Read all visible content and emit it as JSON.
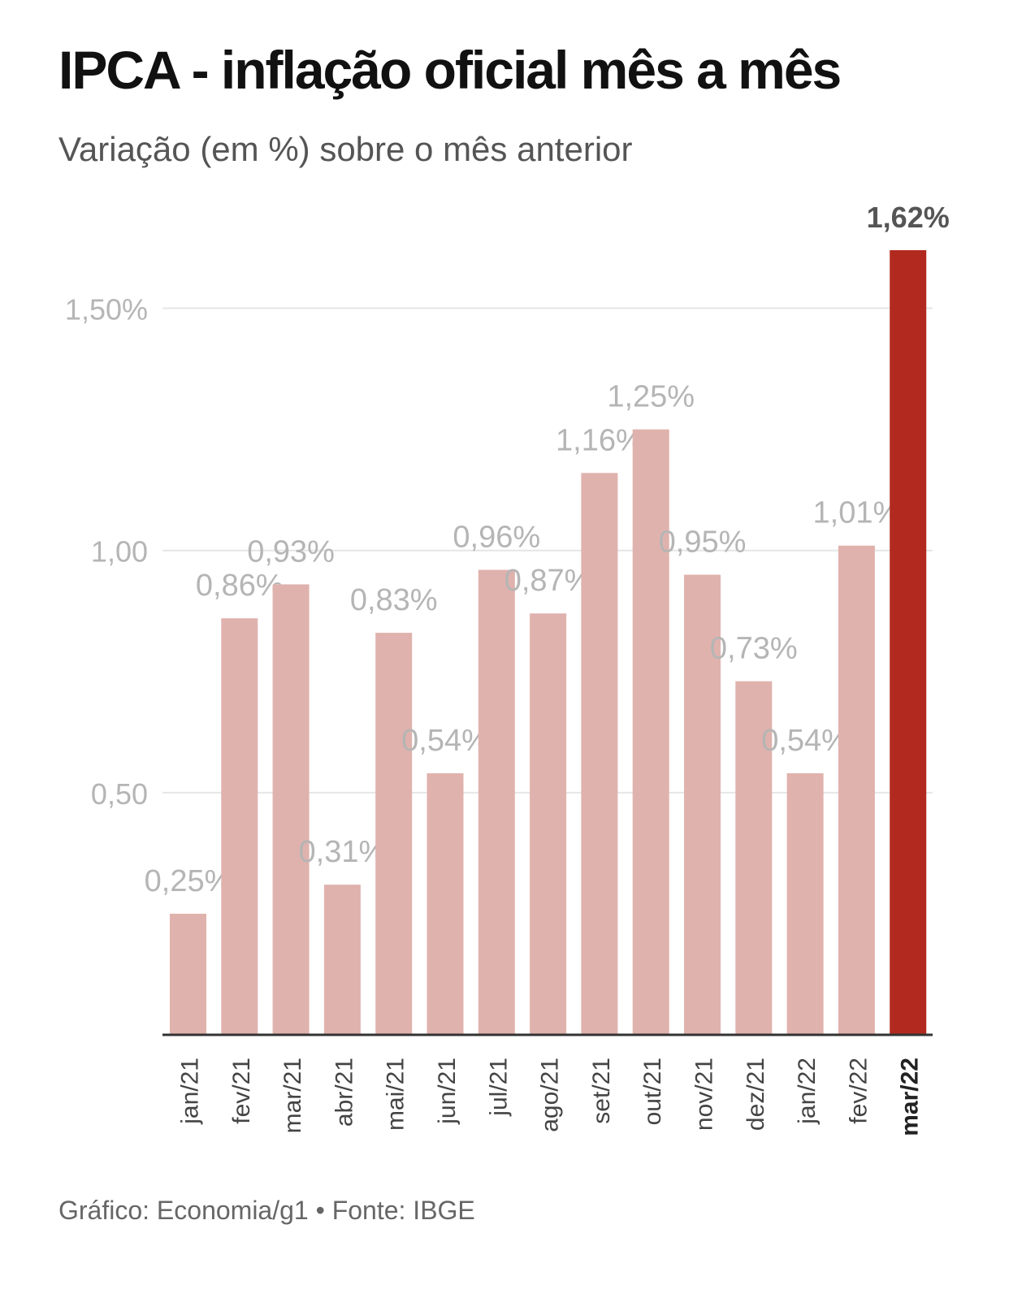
{
  "header": {
    "title": "IPCA - inflação oficial mês a mês",
    "subtitle": "Variação (em %) sobre o mês anterior"
  },
  "footer": {
    "credit": "Gráfico: Economia/g1 • Fonte: IBGE"
  },
  "chart_data": {
    "type": "bar",
    "categories": [
      "jan/21",
      "fev/21",
      "mar/21",
      "abr/21",
      "mai/21",
      "jun/21",
      "jul/21",
      "ago/21",
      "set/21",
      "out/21",
      "nov/21",
      "dez/21",
      "jan/22",
      "fev/22",
      "mar/22"
    ],
    "values": [
      0.25,
      0.86,
      0.93,
      0.31,
      0.83,
      0.54,
      0.96,
      0.87,
      1.16,
      1.25,
      0.95,
      0.73,
      0.54,
      1.01,
      1.62
    ],
    "value_labels": [
      "0,25%",
      "0,86%",
      "0,93%",
      "0,31%",
      "0,83%",
      "0,54%",
      "0,96%",
      "0,87%",
      "1,16%",
      "1,25%",
      "0,95%",
      "0,73%",
      "0,54%",
      "1,01%",
      "1,62%"
    ],
    "highlight_index": 14,
    "y_ticks": [
      0.5,
      1.0,
      1.5
    ],
    "y_tick_labels": [
      "0,50",
      "1,00",
      "1,50%"
    ],
    "ylim": [
      0,
      1.62
    ],
    "grid": true,
    "colors": {
      "bar": "#e0b2ad",
      "highlight_bar": "#b22a1f",
      "grid": "#e6e6e6",
      "axis": "#333333",
      "muted_text": "#b5b5b5",
      "highlight_text": "#555555"
    }
  }
}
